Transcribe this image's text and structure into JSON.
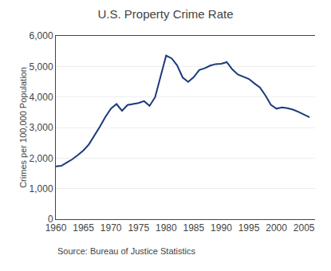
{
  "chart_data": {
    "type": "line",
    "title": "U.S. Property Crime Rate",
    "ylabel": "Crimes per 100,000 Population",
    "annotations": [
      "Source: Bureau of Justice Statistics"
    ],
    "color": "#1a3a7a",
    "grid": "y",
    "xlim": [
      1960,
      2007
    ],
    "ylim": [
      0,
      6000
    ],
    "xticks": [
      1960,
      1965,
      1970,
      1975,
      1980,
      1985,
      1990,
      1995,
      2000,
      2005
    ],
    "yticks": [
      0,
      {
        "value": 1000,
        "label": "1,000"
      },
      {
        "value": 2000,
        "label": "2,000"
      },
      {
        "value": 3000,
        "label": "3,000"
      },
      {
        "value": 4000,
        "label": "4,000"
      },
      {
        "value": 5000,
        "label": "5,000"
      },
      {
        "value": 6000,
        "label": "6,000"
      }
    ],
    "x": [
      1960,
      1961,
      1962,
      1963,
      1964,
      1965,
      1966,
      1967,
      1968,
      1969,
      1970,
      1971,
      1972,
      1973,
      1974,
      1975,
      1976,
      1977,
      1978,
      1979,
      1980,
      1981,
      1982,
      1983,
      1984,
      1985,
      1986,
      1987,
      1988,
      1989,
      1990,
      1991,
      1992,
      1993,
      1994,
      1995,
      1996,
      1997,
      1998,
      1999,
      2000,
      2001,
      2002,
      2003,
      2004,
      2005,
      2006
    ],
    "values": [
      1726,
      1747,
      1858,
      1963,
      2100,
      2249,
      2450,
      2736,
      3035,
      3351,
      3621,
      3769,
      3550,
      3737,
      3775,
      3801,
      3863,
      3709,
      3993,
      4667,
      5353,
      5264,
      5032,
      4637,
      4492,
      4650,
      4881,
      4940,
      5027,
      5077,
      5088,
      5140,
      4902,
      4737,
      4660,
      4590,
      4444,
      4312,
      4052,
      3743,
      3618,
      3658,
      3630,
      3588,
      3514,
      3432,
      3334
    ]
  }
}
